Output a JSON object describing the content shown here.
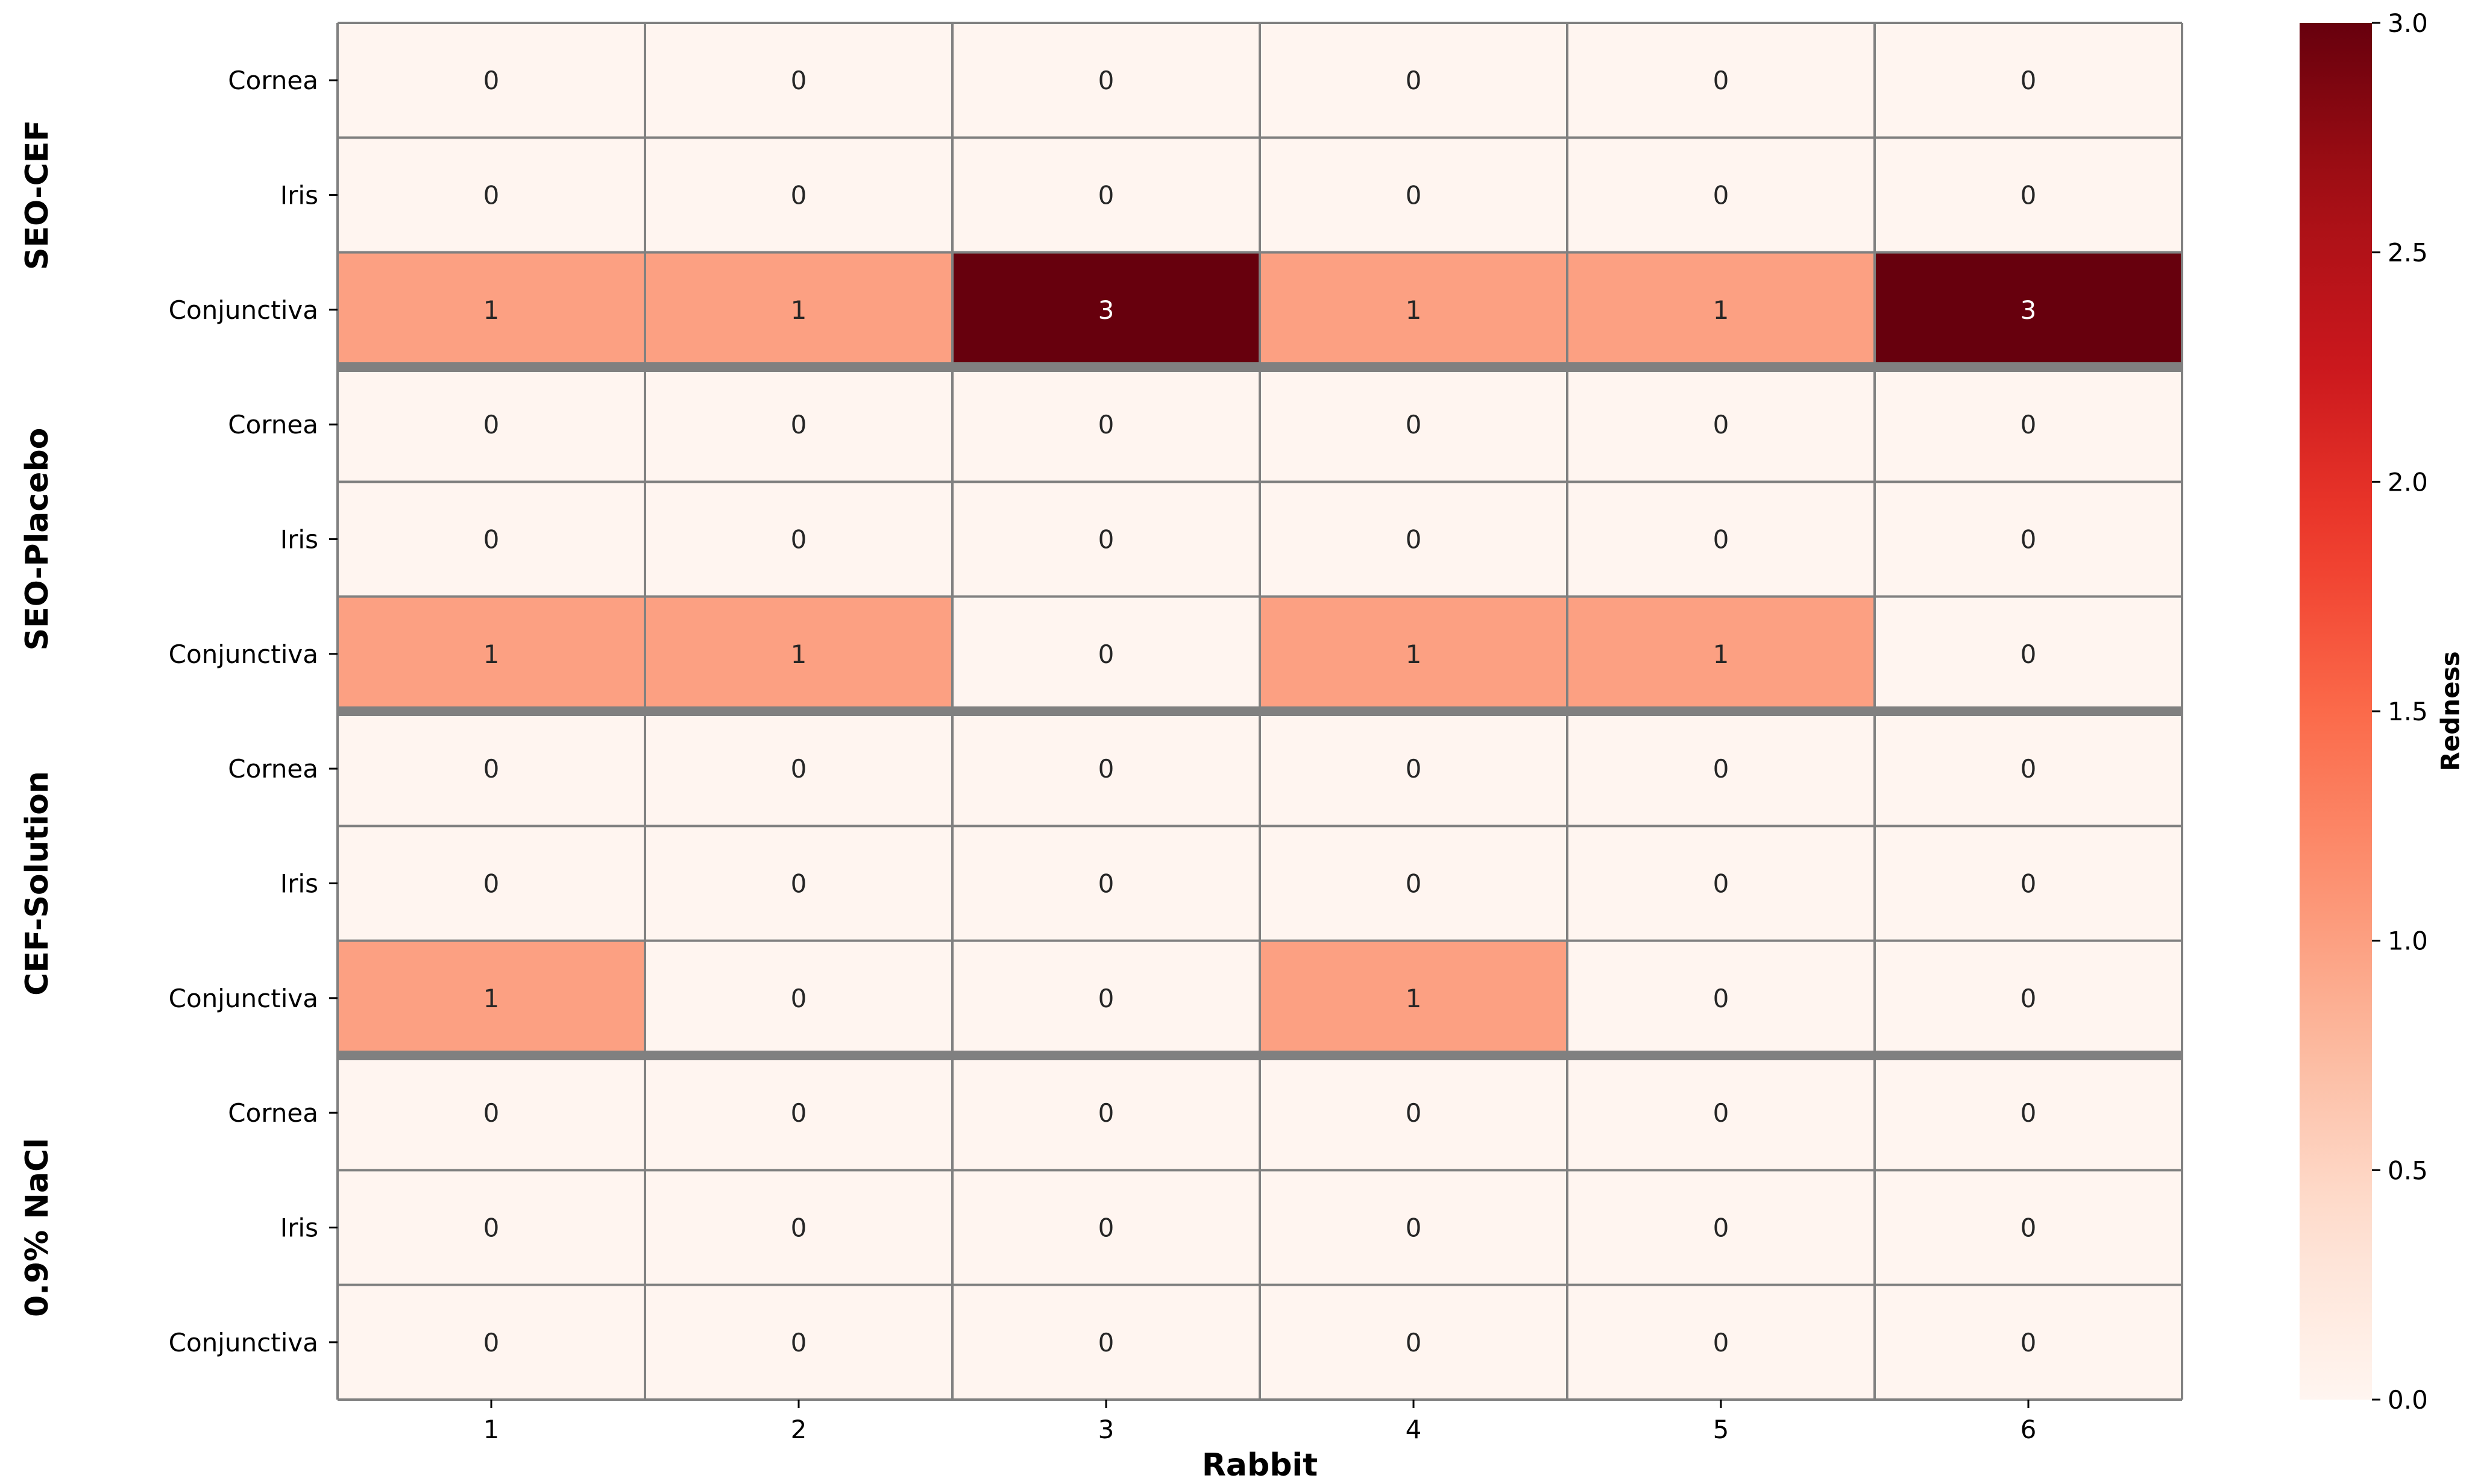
{
  "chart_data": {
    "type": "heatmap",
    "title": "",
    "xlabel": "Rabbit",
    "ylabel": "",
    "x_categories": [
      "1",
      "2",
      "3",
      "4",
      "5",
      "6"
    ],
    "groups": [
      {
        "name": "SEO-CEF",
        "rows": [
          {
            "label": "Cornea",
            "values": [
              0,
              0,
              0,
              0,
              0,
              0
            ]
          },
          {
            "label": "Iris",
            "values": [
              0,
              0,
              0,
              0,
              0,
              0
            ]
          },
          {
            "label": "Conjunctiva",
            "values": [
              1,
              1,
              3,
              1,
              1,
              3
            ]
          }
        ]
      },
      {
        "name": "SEO-Placebo",
        "rows": [
          {
            "label": "Cornea",
            "values": [
              0,
              0,
              0,
              0,
              0,
              0
            ]
          },
          {
            "label": "Iris",
            "values": [
              0,
              0,
              0,
              0,
              0,
              0
            ]
          },
          {
            "label": "Conjunctiva",
            "values": [
              1,
              1,
              0,
              1,
              1,
              0
            ]
          }
        ]
      },
      {
        "name": "CEF-Solution",
        "rows": [
          {
            "label": "Cornea",
            "values": [
              0,
              0,
              0,
              0,
              0,
              0
            ]
          },
          {
            "label": "Iris",
            "values": [
              0,
              0,
              0,
              0,
              0,
              0
            ]
          },
          {
            "label": "Conjunctiva",
            "values": [
              1,
              0,
              0,
              1,
              0,
              0
            ]
          }
        ]
      },
      {
        "name": "0.9% NaCl",
        "rows": [
          {
            "label": "Cornea",
            "values": [
              0,
              0,
              0,
              0,
              0,
              0
            ]
          },
          {
            "label": "Iris",
            "values": [
              0,
              0,
              0,
              0,
              0,
              0
            ]
          },
          {
            "label": "Conjunctiva",
            "values": [
              0,
              0,
              0,
              0,
              0,
              0
            ]
          }
        ]
      }
    ],
    "colorbar": {
      "label": "Redness",
      "range": [
        0,
        3
      ],
      "ticks": [
        "0.0",
        "0.5",
        "1.0",
        "1.5",
        "2.0",
        "2.5",
        "3.0"
      ],
      "colormap": "Reds"
    },
    "colors": {
      "scale_0": "#fff5f0",
      "scale_1": "#fc9f81",
      "scale_3": "#67000d",
      "grid": "#808080",
      "separator": "#808080"
    }
  }
}
